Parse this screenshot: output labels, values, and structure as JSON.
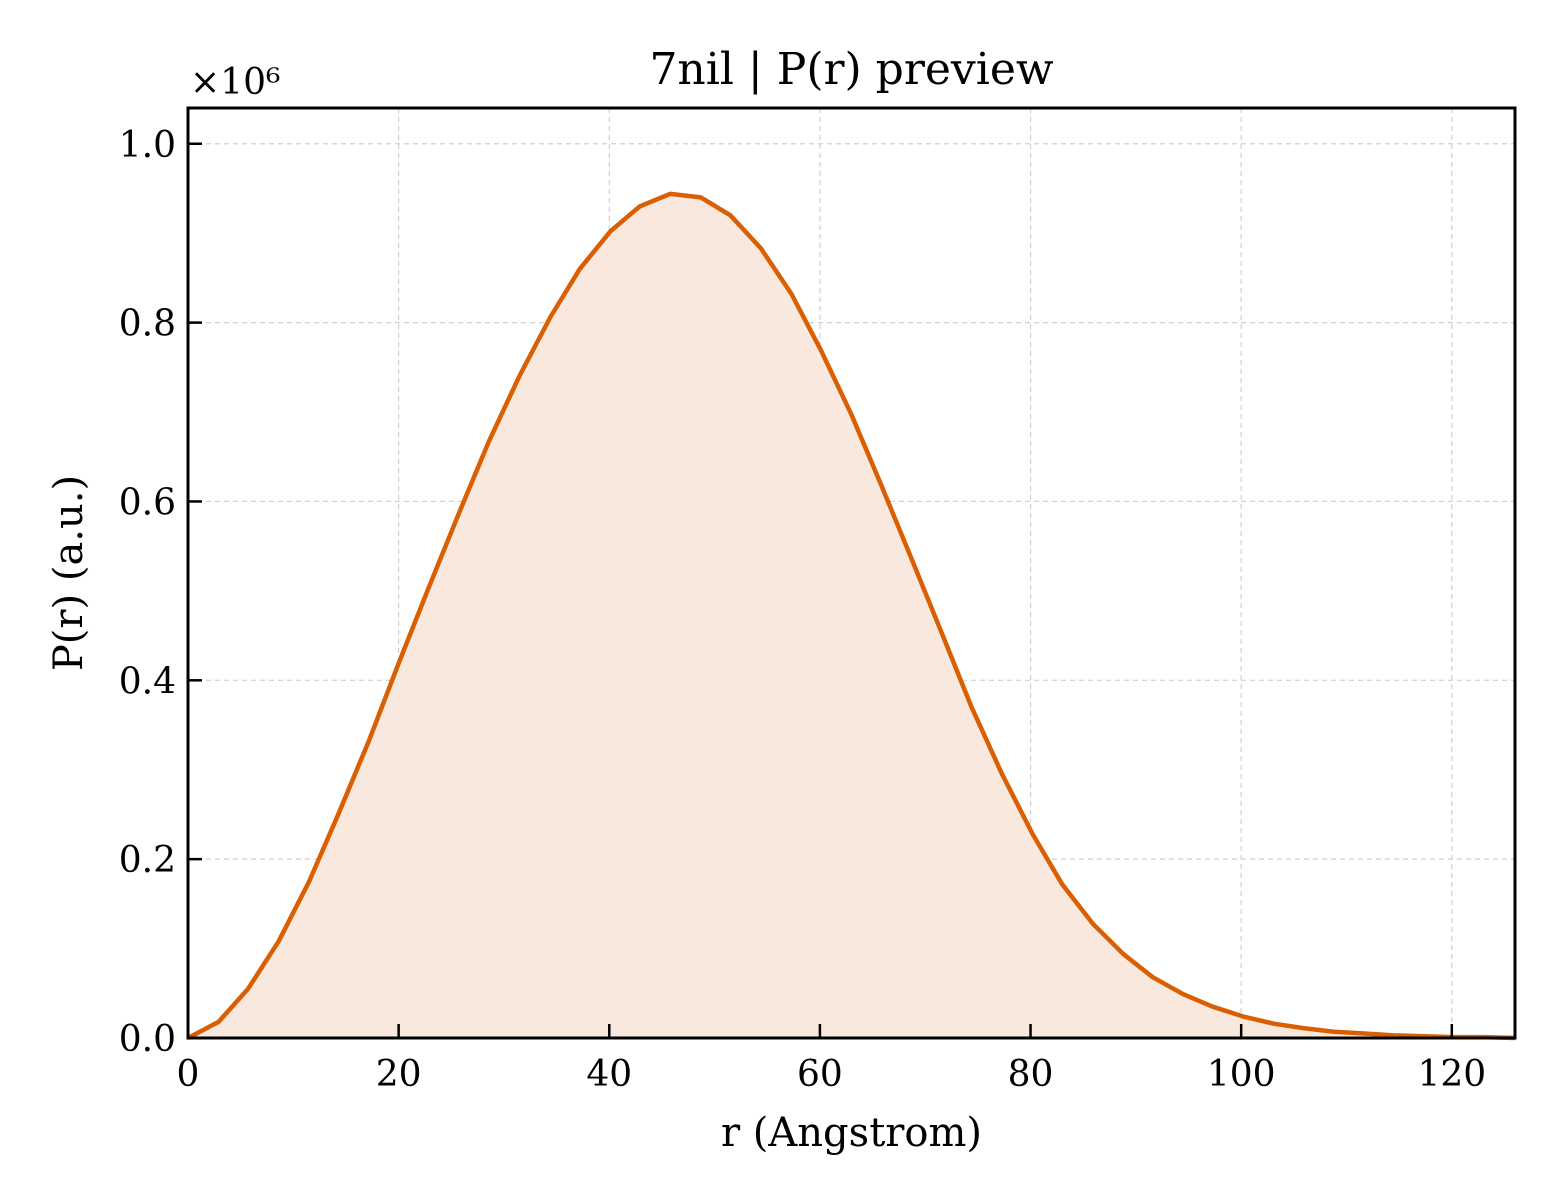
{
  "chart_data": {
    "type": "area",
    "title": "7nil | P(r) preview",
    "xlabel": "r (Angstrom)",
    "ylabel": "P(r) (a.u.)",
    "y_multiplier_label": "×10⁶",
    "xlim": [
      0,
      126
    ],
    "ylim": [
      0,
      1.04
    ],
    "x_ticks": [
      0,
      20,
      40,
      60,
      80,
      100,
      120
    ],
    "x_tick_labels": [
      "0",
      "20",
      "40",
      "60",
      "80",
      "100",
      "120"
    ],
    "y_ticks": [
      0,
      0.2,
      0.4,
      0.6,
      0.8,
      1.0
    ],
    "y_tick_labels": [
      "0.0",
      "0.2",
      "0.4",
      "0.6",
      "0.8",
      "1.0"
    ],
    "grid": true,
    "colors": {
      "line": "#d95f02",
      "fill": "#f8e8dd",
      "grid": "#cfcfcf"
    },
    "series": [
      {
        "x": [
          0,
          2.9,
          5.7,
          8.6,
          11.5,
          14.3,
          17.2,
          20.0,
          22.9,
          25.8,
          28.6,
          31.5,
          34.4,
          37.2,
          40.1,
          42.9,
          45.8,
          48.7,
          51.5,
          54.4,
          57.3,
          60.1,
          63.0,
          65.8,
          68.7,
          71.6,
          74.4,
          77.3,
          80.2,
          83.0,
          85.9,
          88.8,
          91.6,
          94.5,
          97.3,
          100.2,
          103.1,
          105.9,
          108.8,
          111.7,
          114.5,
          117.4,
          120.2,
          123.1,
          126.0
        ],
        "y": [
          0.0,
          0.018,
          0.055,
          0.108,
          0.175,
          0.251,
          0.333,
          0.419,
          0.505,
          0.589,
          0.668,
          0.741,
          0.806,
          0.86,
          0.902,
          0.93,
          0.944,
          0.94,
          0.92,
          0.883,
          0.832,
          0.769,
          0.697,
          0.619,
          0.536,
          0.452,
          0.37,
          0.295,
          0.228,
          0.172,
          0.128,
          0.094,
          0.068,
          0.049,
          0.035,
          0.024,
          0.016,
          0.011,
          0.007,
          0.005,
          0.003,
          0.002,
          0.001,
          0.001,
          0.0
        ]
      }
    ]
  }
}
